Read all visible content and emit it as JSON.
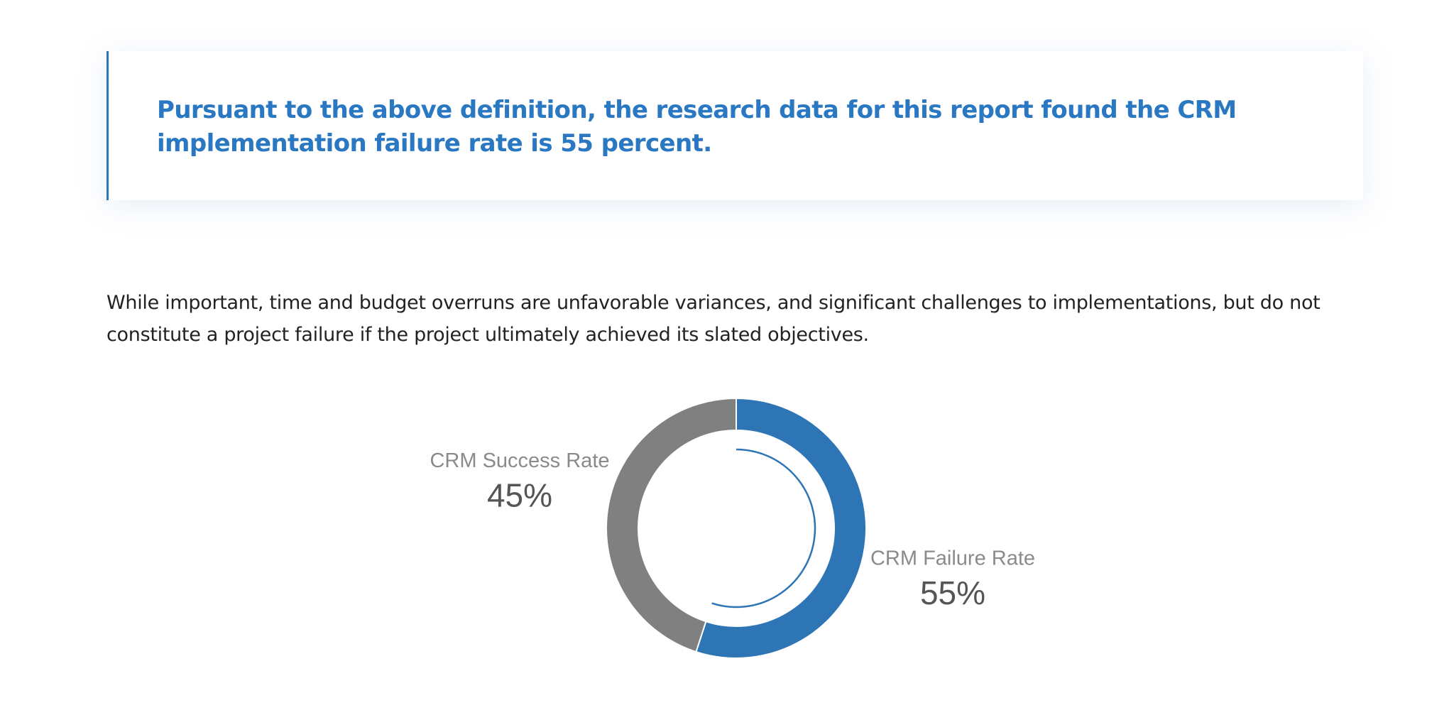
{
  "callout": {
    "text": "Pursuant to the above definition, the research data for this report found the CRM implementation failure rate is",
    "emphasis": "55 percent",
    "end": "."
  },
  "paragraph": "While important, time and budget overruns are unfavorable variances, and significant challenges to implementations, but do not constitute a project failure if the project ultimately achieved its slated objectives.",
  "chart_data": {
    "type": "donut",
    "categories": [
      "CRM Failure Rate",
      "CRM Success Rate"
    ],
    "values": [
      55,
      45
    ],
    "value_labels": [
      "55%",
      "45%"
    ],
    "colors": [
      "#2e75b6",
      "#808080"
    ]
  }
}
